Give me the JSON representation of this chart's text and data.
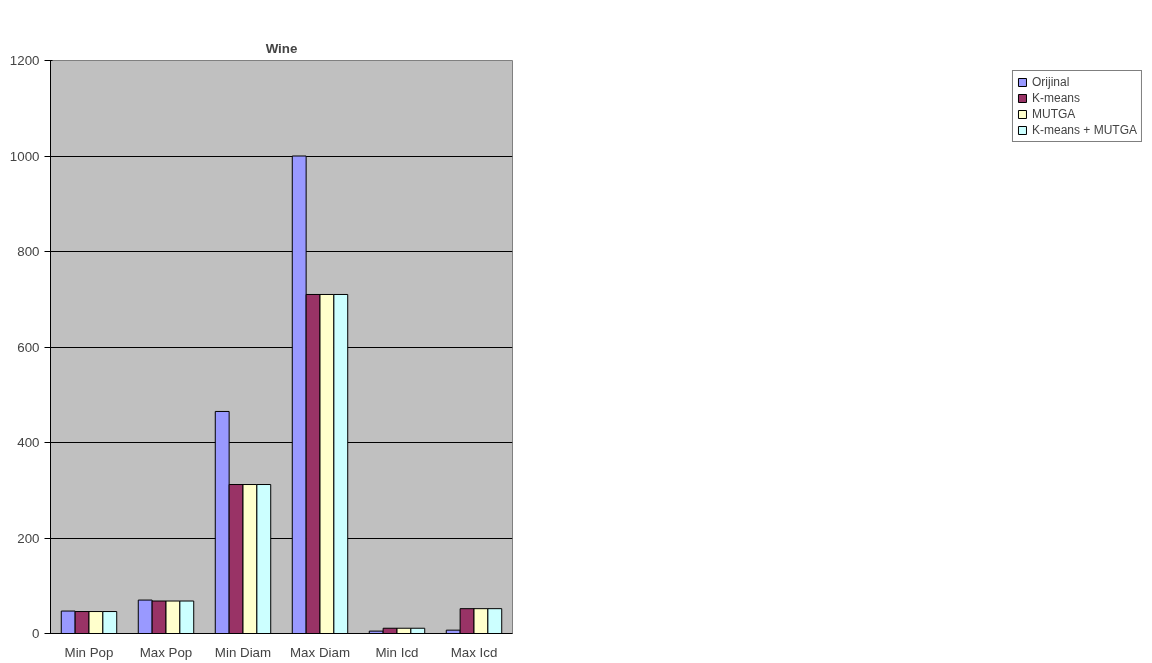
{
  "chart_data": {
    "type": "bar",
    "title": "Wine",
    "categories": [
      "Min Pop",
      "Max Pop",
      "Min Diam",
      "Max Diam",
      "Min Icd",
      "Max Icd"
    ],
    "series": [
      {
        "name": "Orijinal",
        "color": "#9999ff",
        "values": [
          47,
          70,
          465,
          1000,
          5,
          7
        ]
      },
      {
        "name": "K-means",
        "color": "#993366",
        "values": [
          46,
          68,
          312,
          710,
          11,
          52
        ]
      },
      {
        "name": "MUTGA",
        "color": "#ffffcc",
        "values": [
          46,
          68,
          312,
          710,
          11,
          52
        ]
      },
      {
        "name": "K-means + MUTGA",
        "color": "#ccffff",
        "values": [
          46,
          68,
          312,
          710,
          11,
          52
        ]
      }
    ],
    "ylim": [
      0,
      1200
    ],
    "yticks": [
      0,
      200,
      400,
      600,
      800,
      1000,
      1200
    ],
    "grid": "y",
    "legend": "right"
  }
}
